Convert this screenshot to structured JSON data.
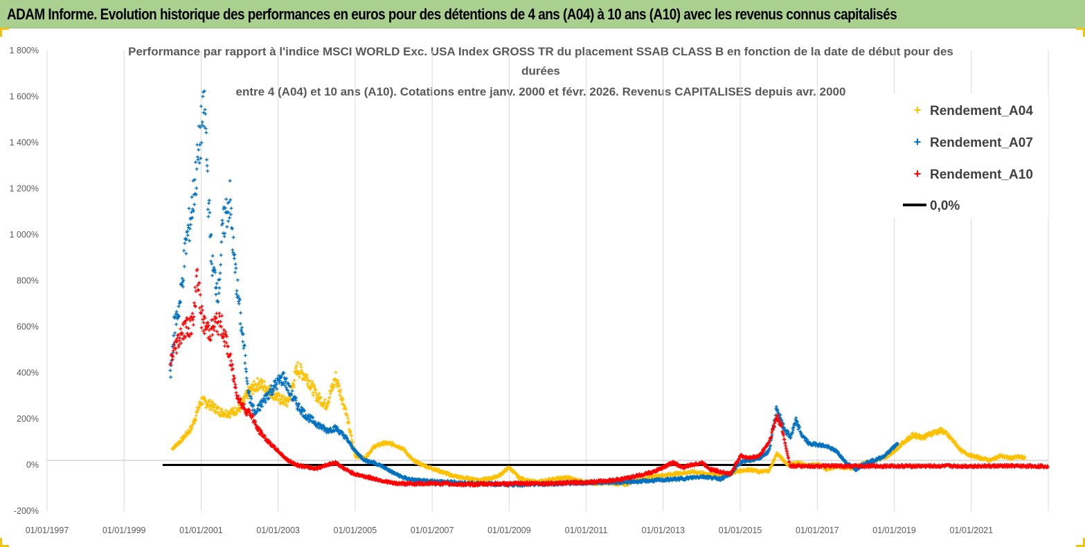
{
  "header": {
    "title": "ADAM Informe. Evolution historique des performances en euros pour des détentions de 4 ans (A04) à 10 ans (A10) avec les revenus connus capitalisés"
  },
  "chart_data": {
    "type": "scatter",
    "title_lines": [
      "Performance par rapport à l'indice MSCI WORLD Exc. USA Index GROSS TR  du placement SSAB CLASS B en fonction de la date de début pour des",
      "durées",
      "entre 4 (A04) et 10 ans (A10). Cotations entre janv. 2000 et févr. 2026. Revenus CAPITALISES depuis avr. 2000"
    ],
    "x_ticks": [
      "01/01/1997",
      "01/01/1999",
      "01/01/2001",
      "01/01/2003",
      "01/01/2005",
      "01/01/2007",
      "01/01/2009",
      "01/01/2011",
      "01/01/2013",
      "01/01/2015",
      "01/01/2017",
      "01/01/2019",
      "01/01/2021"
    ],
    "y_ticks": [
      "-200%",
      "0%",
      "200%",
      "400%",
      "600%",
      "800%",
      "1 000%",
      "1 200%",
      "1 400%",
      "1 600%",
      "1 800%"
    ],
    "xlim": [
      1997.0,
      2023.0
    ],
    "ylim": [
      -200,
      1800
    ],
    "grid": "vertical",
    "legend_position": "top-right",
    "colors": {
      "A04": "#ffc000",
      "A07": "#0070c0",
      "A10": "#ff0000",
      "zero": "#000000"
    },
    "series": [
      {
        "name": "Rendement_A04",
        "color": "#ffc000",
        "points": [
          [
            2000.25,
            70
          ],
          [
            2000.5,
            110
          ],
          [
            2000.75,
            160
          ],
          [
            2001.0,
            280
          ],
          [
            2001.25,
            260
          ],
          [
            2001.5,
            230
          ],
          [
            2001.75,
            225
          ],
          [
            2002.0,
            245
          ],
          [
            2002.25,
            320
          ],
          [
            2002.5,
            355
          ],
          [
            2002.75,
            330
          ],
          [
            2003.0,
            290
          ],
          [
            2003.25,
            270
          ],
          [
            2003.5,
            420
          ],
          [
            2003.75,
            380
          ],
          [
            2004.0,
            300
          ],
          [
            2004.25,
            260
          ],
          [
            2004.5,
            380
          ],
          [
            2004.75,
            240
          ],
          [
            2005.0,
            40
          ],
          [
            2005.25,
            30
          ],
          [
            2005.5,
            80
          ],
          [
            2005.75,
            95
          ],
          [
            2006.0,
            90
          ],
          [
            2006.25,
            70
          ],
          [
            2006.5,
            20
          ],
          [
            2006.75,
            0
          ],
          [
            2007.0,
            -15
          ],
          [
            2007.25,
            -30
          ],
          [
            2007.5,
            -45
          ],
          [
            2007.75,
            -55
          ],
          [
            2008.0,
            -60
          ],
          [
            2008.25,
            -65
          ],
          [
            2008.5,
            -60
          ],
          [
            2008.75,
            -45
          ],
          [
            2009.0,
            -10
          ],
          [
            2009.25,
            -55
          ],
          [
            2009.5,
            -70
          ],
          [
            2009.75,
            -75
          ],
          [
            2010.0,
            -65
          ],
          [
            2010.25,
            -60
          ],
          [
            2010.5,
            -55
          ],
          [
            2010.75,
            -65
          ],
          [
            2011.0,
            -75
          ],
          [
            2011.25,
            -80
          ],
          [
            2011.5,
            -78
          ],
          [
            2011.75,
            -80
          ],
          [
            2012.0,
            -85
          ],
          [
            2012.25,
            -70
          ],
          [
            2012.5,
            -60
          ],
          [
            2012.75,
            -50
          ],
          [
            2013.0,
            -45
          ],
          [
            2013.25,
            -40
          ],
          [
            2013.5,
            -35
          ],
          [
            2013.75,
            -30
          ],
          [
            2014.0,
            -35
          ],
          [
            2014.25,
            -40
          ],
          [
            2014.5,
            -45
          ],
          [
            2014.75,
            -35
          ],
          [
            2015.0,
            -25
          ],
          [
            2015.25,
            -20
          ],
          [
            2015.5,
            -30
          ],
          [
            2015.75,
            -25
          ],
          [
            2015.95,
            50
          ],
          [
            2016.25,
            0
          ],
          [
            2016.5,
            10
          ],
          [
            2016.75,
            -5
          ],
          [
            2017.0,
            5
          ],
          [
            2017.25,
            -20
          ],
          [
            2017.5,
            -5
          ],
          [
            2017.75,
            -15
          ],
          [
            2018.0,
            -10
          ],
          [
            2018.25,
            10
          ],
          [
            2018.5,
            20
          ],
          [
            2018.75,
            30
          ],
          [
            2019.0,
            60
          ],
          [
            2019.25,
            100
          ],
          [
            2019.5,
            130
          ],
          [
            2019.75,
            120
          ],
          [
            2020.0,
            140
          ],
          [
            2020.25,
            150
          ],
          [
            2020.5,
            110
          ],
          [
            2020.75,
            60
          ],
          [
            2021.0,
            40
          ],
          [
            2021.25,
            30
          ],
          [
            2021.5,
            20
          ],
          [
            2021.75,
            40
          ],
          [
            2022.0,
            30
          ],
          [
            2022.25,
            35
          ],
          [
            2022.4,
            30
          ]
        ]
      },
      {
        "name": "Rendement_A07",
        "color": "#0070c0",
        "points": [
          [
            2000.2,
            380
          ],
          [
            2000.3,
            600
          ],
          [
            2000.45,
            700
          ],
          [
            2000.6,
            950
          ],
          [
            2000.75,
            1100
          ],
          [
            2000.9,
            1300
          ],
          [
            2001.0,
            1450
          ],
          [
            2001.1,
            1550
          ],
          [
            2001.2,
            1100
          ],
          [
            2001.3,
            850
          ],
          [
            2001.45,
            750
          ],
          [
            2001.55,
            1000
          ],
          [
            2001.65,
            1100
          ],
          [
            2001.75,
            1150
          ],
          [
            2001.85,
            900
          ],
          [
            2001.95,
            750
          ],
          [
            2002.05,
            600
          ],
          [
            2002.15,
            450
          ],
          [
            2002.25,
            300
          ],
          [
            2002.4,
            220
          ],
          [
            2002.55,
            260
          ],
          [
            2002.75,
            310
          ],
          [
            2003.0,
            360
          ],
          [
            2003.15,
            380
          ],
          [
            2003.3,
            320
          ],
          [
            2003.5,
            260
          ],
          [
            2003.75,
            210
          ],
          [
            2004.0,
            180
          ],
          [
            2004.25,
            150
          ],
          [
            2004.5,
            160
          ],
          [
            2004.75,
            120
          ],
          [
            2005.0,
            60
          ],
          [
            2005.25,
            20
          ],
          [
            2005.5,
            10
          ],
          [
            2005.75,
            -10
          ],
          [
            2006.0,
            -35
          ],
          [
            2006.25,
            -55
          ],
          [
            2006.5,
            -65
          ],
          [
            2006.75,
            -70
          ],
          [
            2007.0,
            -70
          ],
          [
            2007.5,
            -75
          ],
          [
            2008.0,
            -80
          ],
          [
            2008.5,
            -82
          ],
          [
            2009.0,
            -85
          ],
          [
            2009.5,
            -85
          ],
          [
            2010.0,
            -82
          ],
          [
            2010.5,
            -80
          ],
          [
            2011.0,
            -78
          ],
          [
            2011.5,
            -75
          ],
          [
            2012.0,
            -75
          ],
          [
            2012.5,
            -70
          ],
          [
            2013.0,
            -65
          ],
          [
            2013.5,
            -60
          ],
          [
            2014.0,
            -50
          ],
          [
            2014.5,
            -60
          ],
          [
            2014.75,
            -40
          ],
          [
            2015.0,
            10
          ],
          [
            2015.25,
            20
          ],
          [
            2015.5,
            30
          ],
          [
            2015.75,
            60
          ],
          [
            2015.95,
            250
          ],
          [
            2016.1,
            170
          ],
          [
            2016.3,
            120
          ],
          [
            2016.45,
            190
          ],
          [
            2016.6,
            130
          ],
          [
            2016.8,
            90
          ],
          [
            2017.0,
            90
          ],
          [
            2017.25,
            80
          ],
          [
            2017.5,
            60
          ],
          [
            2017.75,
            10
          ],
          [
            2018.0,
            -20
          ],
          [
            2018.25,
            10
          ],
          [
            2018.5,
            20
          ],
          [
            2018.75,
            40
          ],
          [
            2019.0,
            80
          ],
          [
            2019.1,
            90
          ]
        ]
      },
      {
        "name": "Rendement_A10",
        "color": "#ff0000",
        "points": [
          [
            2000.2,
            450
          ],
          [
            2000.35,
            520
          ],
          [
            2000.5,
            580
          ],
          [
            2000.65,
            600
          ],
          [
            2000.8,
            620
          ],
          [
            2000.9,
            850
          ],
          [
            2001.0,
            650
          ],
          [
            2001.1,
            600
          ],
          [
            2001.25,
            580
          ],
          [
            2001.4,
            620
          ],
          [
            2001.55,
            600
          ],
          [
            2001.7,
            500
          ],
          [
            2001.8,
            420
          ],
          [
            2001.9,
            330
          ],
          [
            2002.0,
            280
          ],
          [
            2002.15,
            240
          ],
          [
            2002.3,
            220
          ],
          [
            2002.45,
            160
          ],
          [
            2002.6,
            130
          ],
          [
            2002.75,
            100
          ],
          [
            2003.0,
            60
          ],
          [
            2003.25,
            20
          ],
          [
            2003.5,
            0
          ],
          [
            2003.75,
            -10
          ],
          [
            2004.0,
            -15
          ],
          [
            2004.25,
            0
          ],
          [
            2004.5,
            10
          ],
          [
            2004.75,
            -20
          ],
          [
            2005.0,
            -40
          ],
          [
            2005.25,
            -50
          ],
          [
            2005.5,
            -60
          ],
          [
            2005.75,
            -70
          ],
          [
            2006.0,
            -80
          ],
          [
            2006.5,
            -82
          ],
          [
            2007.0,
            -80
          ],
          [
            2007.5,
            -83
          ],
          [
            2008.0,
            -85
          ],
          [
            2008.5,
            -82
          ],
          [
            2009.0,
            -82
          ],
          [
            2009.5,
            -80
          ],
          [
            2010.0,
            -80
          ],
          [
            2010.5,
            -78
          ],
          [
            2011.0,
            -75
          ],
          [
            2011.5,
            -70
          ],
          [
            2012.0,
            -60
          ],
          [
            2012.25,
            -50
          ],
          [
            2012.5,
            -40
          ],
          [
            2012.75,
            -30
          ],
          [
            2013.0,
            -10
          ],
          [
            2013.25,
            10
          ],
          [
            2013.5,
            -10
          ],
          [
            2013.75,
            0
          ],
          [
            2014.0,
            10
          ],
          [
            2014.25,
            -20
          ],
          [
            2014.5,
            -30
          ],
          [
            2014.75,
            -40
          ],
          [
            2015.0,
            40
          ],
          [
            2015.25,
            30
          ],
          [
            2015.5,
            40
          ],
          [
            2015.75,
            100
          ],
          [
            2015.95,
            210
          ],
          [
            2016.05,
            180
          ],
          [
            2016.3,
            -5
          ],
          [
            2017.0,
            -5
          ],
          [
            2018.0,
            -5
          ],
          [
            2019.0,
            -5
          ],
          [
            2020.0,
            -5
          ],
          [
            2021.0,
            -5
          ],
          [
            2022.0,
            -5
          ],
          [
            2023.0,
            -5
          ]
        ]
      }
    ],
    "zero_line": {
      "name": "0,0%",
      "y": 0,
      "x_from": 2000.0,
      "x_to": 2016.25
    },
    "legend": [
      "Rendement_A04",
      "Rendement_A07",
      "Rendement_A10",
      "0,0%"
    ]
  }
}
